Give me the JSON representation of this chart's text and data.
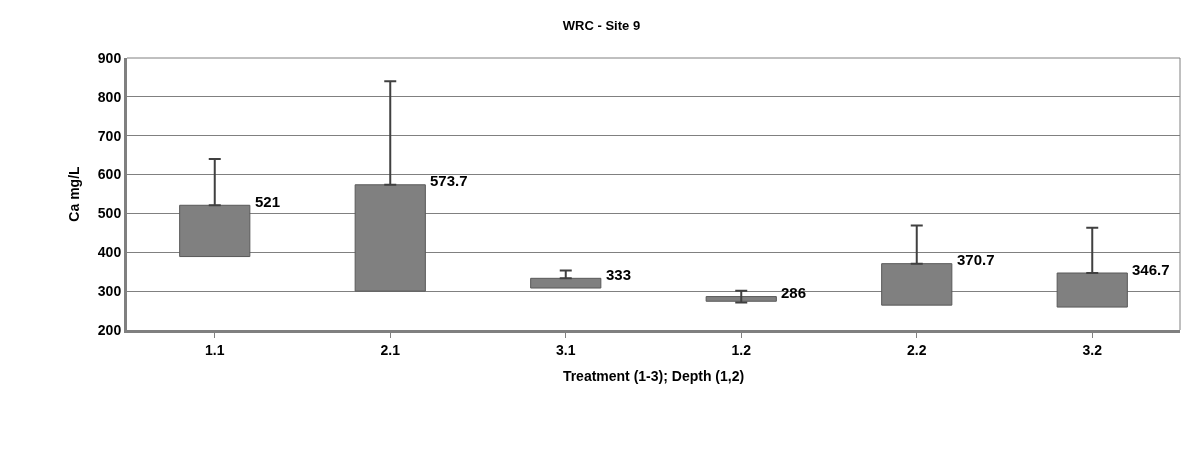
{
  "chart_data": {
    "type": "bar",
    "title": "WRC - Site 9",
    "xlabel": "Treatment (1-3); Depth (1,2)",
    "ylabel": "Ca mg/L",
    "categories": [
      "1.1",
      "2.1",
      "3.1",
      "1.2",
      "2.2",
      "3.2"
    ],
    "base": [
      389,
      300,
      308,
      274,
      264,
      259
    ],
    "values": [
      132,
      273.7,
      25,
      12,
      106.7,
      87.7
    ],
    "annotations": [
      {
        "text": "521",
        "x": "1.1",
        "y": 521
      },
      {
        "text": "573.7",
        "x": "2.1",
        "y": 573.7
      },
      {
        "text": "333",
        "x": "3.1",
        "y": 333
      },
      {
        "text": "286",
        "x": "1.2",
        "y": 286
      },
      {
        "text": "370.7",
        "x": "2.2",
        "y": 370.7
      },
      {
        "text": "346.7",
        "x": "3.2",
        "y": 346.7
      }
    ],
    "errors": [
      [
        521,
        640
      ],
      [
        573.7,
        840
      ],
      [
        333,
        353
      ],
      [
        271,
        301
      ],
      [
        370.7,
        469
      ],
      [
        346.7,
        463
      ]
    ],
    "color": "#808080",
    "ylim": [
      200,
      900
    ],
    "yticks": [
      200,
      300,
      400,
      500,
      600,
      700,
      800,
      900
    ],
    "grid": "y",
    "legend": false
  }
}
